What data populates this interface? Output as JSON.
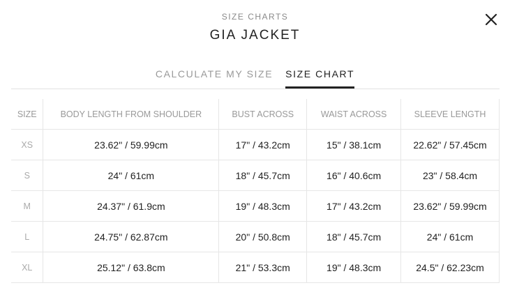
{
  "header": {
    "subtitle": "SIZE CHARTS",
    "title": "GIA JACKET",
    "close_icon": "close-icon"
  },
  "tabs": [
    {
      "label": "CALCULATE MY SIZE",
      "active": false
    },
    {
      "label": "SIZE CHART",
      "active": true
    }
  ],
  "table": {
    "columns": [
      "SIZE",
      "BODY LENGTH FROM SHOULDER",
      "BUST ACROSS",
      "WAIST ACROSS",
      "SLEEVE LENGTH"
    ],
    "rows": [
      [
        "XS",
        "23.62\" / 59.99cm",
        "17\" / 43.2cm",
        "15\" / 38.1cm",
        "22.62\" / 57.45cm"
      ],
      [
        "S",
        "24\" / 61cm",
        "18\" / 45.7cm",
        "16\" / 40.6cm",
        "23\" / 58.4cm"
      ],
      [
        "M",
        "24.37\" / 61.9cm",
        "19\" / 48.3cm",
        "17\" / 43.2cm",
        "23.62\" / 59.99cm"
      ],
      [
        "L",
        "24.75\" / 62.87cm",
        "20\" / 50.8cm",
        "18\" / 45.7cm",
        "24\" / 61cm"
      ],
      [
        "XL",
        "25.12\" / 63.8cm",
        "21\" / 53.3cm",
        "19\" / 48.3cm",
        "24.5\" / 62.23cm"
      ]
    ]
  }
}
